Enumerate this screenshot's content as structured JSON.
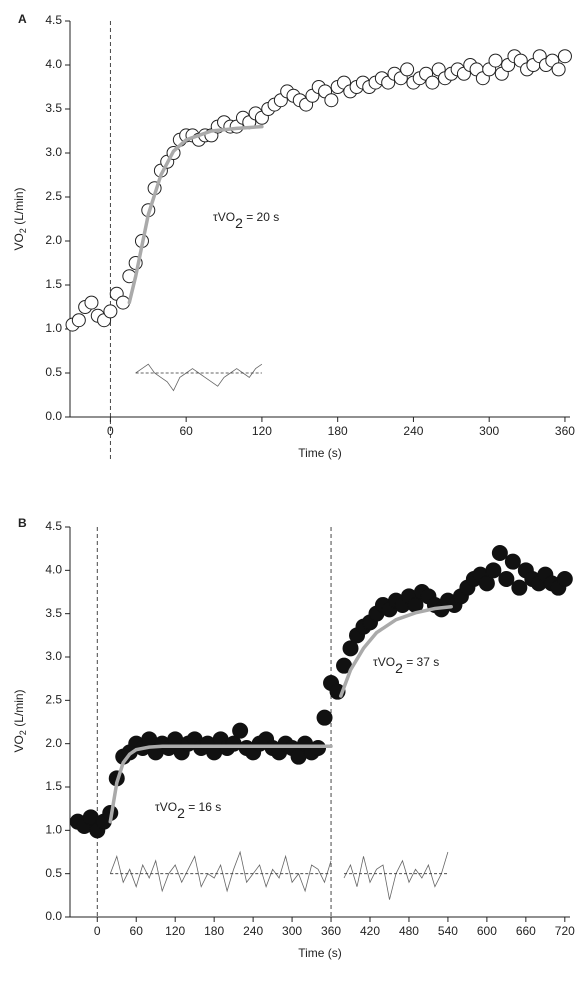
{
  "chart_data": [
    {
      "type": "scatter",
      "panel_label": "A",
      "x_label": "Time (s)",
      "y_label": [
        "VO",
        "2",
        " (L/min)"
      ],
      "annotations": [
        [
          "τVO",
          "2",
          " = 20 s"
        ]
      ],
      "marker": "open",
      "color": "#222222",
      "xlim": [
        -32,
        364
      ],
      "ylim": [
        0,
        4.5
      ],
      "xticks": [
        0,
        60,
        120,
        180,
        240,
        300,
        360
      ],
      "yticks": [
        {
          "value": 0,
          "label": "0.0"
        },
        0.5,
        {
          "value": 1,
          "label": "1.0"
        },
        1.5,
        {
          "value": 2,
          "label": "2.0"
        },
        2.5,
        {
          "value": 3,
          "label": "3.0"
        },
        3.5,
        {
          "value": 4,
          "label": "4.0"
        },
        4.5
      ],
      "vlines": [
        0
      ],
      "x": [
        -30,
        -25,
        -20,
        -15,
        -10,
        -5,
        0,
        5,
        10,
        15,
        20,
        25,
        30,
        35,
        40,
        45,
        50,
        55,
        60,
        65,
        70,
        75,
        80,
        85,
        90,
        95,
        100,
        105,
        110,
        115,
        120,
        125,
        130,
        135,
        140,
        145,
        150,
        155,
        160,
        165,
        170,
        175,
        180,
        185,
        190,
        195,
        200,
        205,
        210,
        215,
        220,
        225,
        230,
        235,
        240,
        245,
        250,
        255,
        260,
        265,
        270,
        275,
        280,
        285,
        290,
        295,
        300,
        305,
        310,
        315,
        320,
        325,
        330,
        335,
        340,
        345,
        350,
        355,
        360
      ],
      "values": [
        1.05,
        1.1,
        1.25,
        1.3,
        1.15,
        1.1,
        1.2,
        1.4,
        1.3,
        1.6,
        1.75,
        2.0,
        2.35,
        2.6,
        2.8,
        2.9,
        3.0,
        3.15,
        3.2,
        3.2,
        3.15,
        3.2,
        3.2,
        3.3,
        3.35,
        3.3,
        3.3,
        3.4,
        3.35,
        3.45,
        3.4,
        3.5,
        3.55,
        3.6,
        3.7,
        3.65,
        3.6,
        3.55,
        3.65,
        3.75,
        3.7,
        3.6,
        3.75,
        3.8,
        3.7,
        3.75,
        3.8,
        3.75,
        3.8,
        3.85,
        3.8,
        3.9,
        3.85,
        3.95,
        3.8,
        3.85,
        3.9,
        3.8,
        3.95,
        3.85,
        3.9,
        3.95,
        3.9,
        4.0,
        3.95,
        3.85,
        3.95,
        4.05,
        3.9,
        4.0,
        4.1,
        4.05,
        3.95,
        4.0,
        4.1,
        4.0,
        4.05,
        3.95,
        4.1
      ],
      "fits": [
        {
          "x": [
            15,
            20,
            30,
            40,
            50,
            60,
            80,
            100,
            120
          ],
          "values": [
            1.3,
            1.6,
            2.3,
            2.75,
            3.02,
            3.15,
            3.25,
            3.28,
            3.3
          ]
        }
      ],
      "residuals": {
        "x": [
          20,
          25,
          30,
          35,
          40,
          45,
          50,
          55,
          60,
          65,
          70,
          75,
          80,
          85,
          90,
          95,
          100,
          105,
          110,
          115,
          120
        ],
        "values": [
          0.5,
          0.55,
          0.6,
          0.5,
          0.45,
          0.4,
          0.3,
          0.45,
          0.5,
          0.55,
          0.5,
          0.45,
          0.4,
          0.35,
          0.45,
          0.5,
          0.55,
          0.5,
          0.45,
          0.55,
          0.6
        ]
      },
      "residual_zero": 0.5
    },
    {
      "type": "scatter",
      "panel_label": "B",
      "x_label": "Time (s)",
      "y_label": [
        "VO",
        "2",
        " (L/min)"
      ],
      "annotations": [
        [
          "τVO",
          "2",
          " = 16 s"
        ],
        [
          "τVO",
          "2",
          " = 37 s"
        ]
      ],
      "marker": "filled",
      "color": "#111111",
      "xlim": [
        -42,
        728
      ],
      "ylim": [
        0,
        4.5
      ],
      "xticks": [
        0,
        60,
        120,
        180,
        240,
        300,
        360,
        420,
        480,
        540,
        600,
        660,
        720
      ],
      "yticks": [
        {
          "value": 0,
          "label": "0.0"
        },
        0.5,
        {
          "value": 1,
          "label": "1.0"
        },
        1.5,
        {
          "value": 2,
          "label": "2.0"
        },
        2.5,
        {
          "value": 3,
          "label": "3.0"
        },
        3.5,
        {
          "value": 4,
          "label": "4.0"
        },
        4.5
      ],
      "vlines": [
        0,
        360
      ],
      "x": [
        -30,
        -20,
        -10,
        0,
        10,
        20,
        30,
        40,
        50,
        60,
        70,
        80,
        90,
        100,
        110,
        120,
        130,
        140,
        150,
        160,
        170,
        180,
        190,
        200,
        210,
        220,
        230,
        240,
        250,
        260,
        270,
        280,
        290,
        300,
        310,
        320,
        330,
        340,
        350,
        360,
        370,
        380,
        390,
        400,
        410,
        420,
        430,
        440,
        450,
        460,
        470,
        480,
        490,
        500,
        510,
        520,
        530,
        540,
        550,
        560,
        570,
        580,
        590,
        600,
        610,
        620,
        630,
        640,
        650,
        660,
        670,
        680,
        690,
        700,
        710,
        720
      ],
      "values": [
        1.1,
        1.05,
        1.15,
        1.0,
        1.1,
        1.2,
        1.6,
        1.85,
        1.9,
        2.0,
        1.95,
        2.05,
        1.9,
        2.0,
        1.95,
        2.05,
        1.9,
        2.0,
        2.05,
        1.95,
        2.0,
        1.9,
        2.05,
        1.95,
        2.0,
        2.15,
        1.95,
        1.9,
        2.0,
        2.05,
        1.95,
        1.9,
        2.0,
        1.95,
        1.85,
        2.0,
        1.9,
        1.95,
        2.3,
        2.7,
        2.6,
        2.9,
        3.1,
        3.25,
        3.35,
        3.4,
        3.5,
        3.6,
        3.55,
        3.65,
        3.6,
        3.7,
        3.6,
        3.75,
        3.7,
        3.6,
        3.55,
        3.65,
        3.6,
        3.7,
        3.8,
        3.9,
        3.95,
        3.85,
        4.0,
        4.2,
        3.9,
        4.1,
        3.8,
        4.0,
        3.9,
        3.85,
        3.95,
        3.85,
        3.8,
        3.9
      ],
      "fits": [
        {
          "x": [
            20,
            30,
            40,
            50,
            60,
            80,
            100,
            150,
            200,
            250,
            300,
            360
          ],
          "values": [
            1.1,
            1.55,
            1.78,
            1.88,
            1.93,
            1.96,
            1.97,
            1.97,
            1.97,
            1.97,
            1.97,
            1.97
          ]
        },
        {
          "x": [
            375,
            390,
            410,
            430,
            460,
            490,
            520,
            545
          ],
          "values": [
            2.55,
            2.85,
            3.1,
            3.28,
            3.43,
            3.51,
            3.56,
            3.58
          ]
        }
      ],
      "residuals": {
        "x": [
          20,
          30,
          40,
          50,
          60,
          70,
          80,
          90,
          100,
          110,
          120,
          130,
          140,
          150,
          160,
          170,
          180,
          190,
          200,
          210,
          220,
          230,
          240,
          250,
          260,
          270,
          280,
          290,
          300,
          310,
          320,
          330,
          340,
          350,
          360,
          370,
          380,
          390,
          400,
          410,
          420,
          430,
          440,
          450,
          460,
          470,
          480,
          490,
          500,
          510,
          520,
          530,
          540
        ],
        "values": [
          0.5,
          0.7,
          0.4,
          0.55,
          0.35,
          0.6,
          0.45,
          0.65,
          0.3,
          0.5,
          0.6,
          0.4,
          0.55,
          0.7,
          0.35,
          0.5,
          0.45,
          0.6,
          0.3,
          0.55,
          0.75,
          0.4,
          0.5,
          0.6,
          0.35,
          0.55,
          0.45,
          0.7,
          0.4,
          0.5,
          0.3,
          0.6,
          0.55,
          0.4,
          0.65,
          null,
          0.45,
          0.6,
          0.35,
          0.7,
          0.4,
          0.55,
          0.6,
          0.2,
          0.5,
          0.65,
          0.4,
          0.55,
          0.45,
          0.6,
          0.35,
          0.5,
          0.75
        ]
      },
      "residual_zero": 0.5
    }
  ]
}
